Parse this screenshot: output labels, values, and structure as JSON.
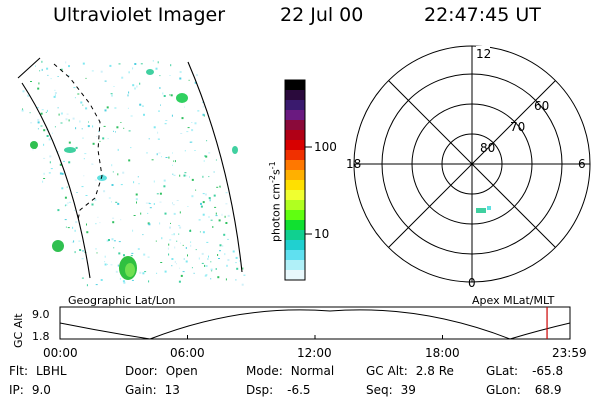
{
  "header": {
    "title": "Ultraviolet Imager",
    "date": "22 Jul 00",
    "time": "22:47:45 UT"
  },
  "colorbar": {
    "label": "photon cm",
    "exp1": "-2",
    "label2": "s",
    "exp2": "-1",
    "ticks": [
      "100",
      "10"
    ],
    "colors": [
      "#000000",
      "#2a0a3c",
      "#3a1a6e",
      "#6a1a80",
      "#8a0a3a",
      "#b00016",
      "#d80000",
      "#f03000",
      "#ff7800",
      "#ffb000",
      "#ffe000",
      "#f0ff30",
      "#b0ff20",
      "#60ff10",
      "#10e030",
      "#10d090",
      "#20d0d0",
      "#60e0f0",
      "#b0f0f8",
      "#e8f8fc"
    ]
  },
  "polar_plot": {
    "mlt_labels": {
      "top": "12",
      "left": "18",
      "right": "6",
      "bottom": "0"
    },
    "lat_labels": [
      "60",
      "70",
      "80"
    ]
  },
  "map_captions": {
    "left": "Geographic Lat/Lon",
    "right": "Apex MLat/MLT"
  },
  "timeline": {
    "ylabel": "GC Alt",
    "y_ticks": [
      "9.0",
      "1.8"
    ],
    "x_ticks": [
      "00:00",
      "06:00",
      "12:00",
      "18:00",
      "23:59"
    ],
    "marker_color": "#cc0000",
    "current_time_frac": 0.955
  },
  "info": {
    "flt_label": "Flt:",
    "flt_value": "LBHL",
    "door_label": "Door:",
    "door_value": "Open",
    "mode_label": "Mode:",
    "mode_value": "Normal",
    "gcalt_label": "GC Alt:",
    "gcalt_value": "2.8 Re",
    "glat_label": "GLat:",
    "glat_value": "-65.8",
    "ip_label": "IP:",
    "ip_value": "9.0",
    "gain_label": "Gain:",
    "gain_value": "13",
    "dsp_label": "Dsp:",
    "dsp_value": "-6.5",
    "seq_label": "Seq:",
    "seq_value": "39",
    "glon_label": "GLon:",
    "glon_value": "68.9"
  }
}
